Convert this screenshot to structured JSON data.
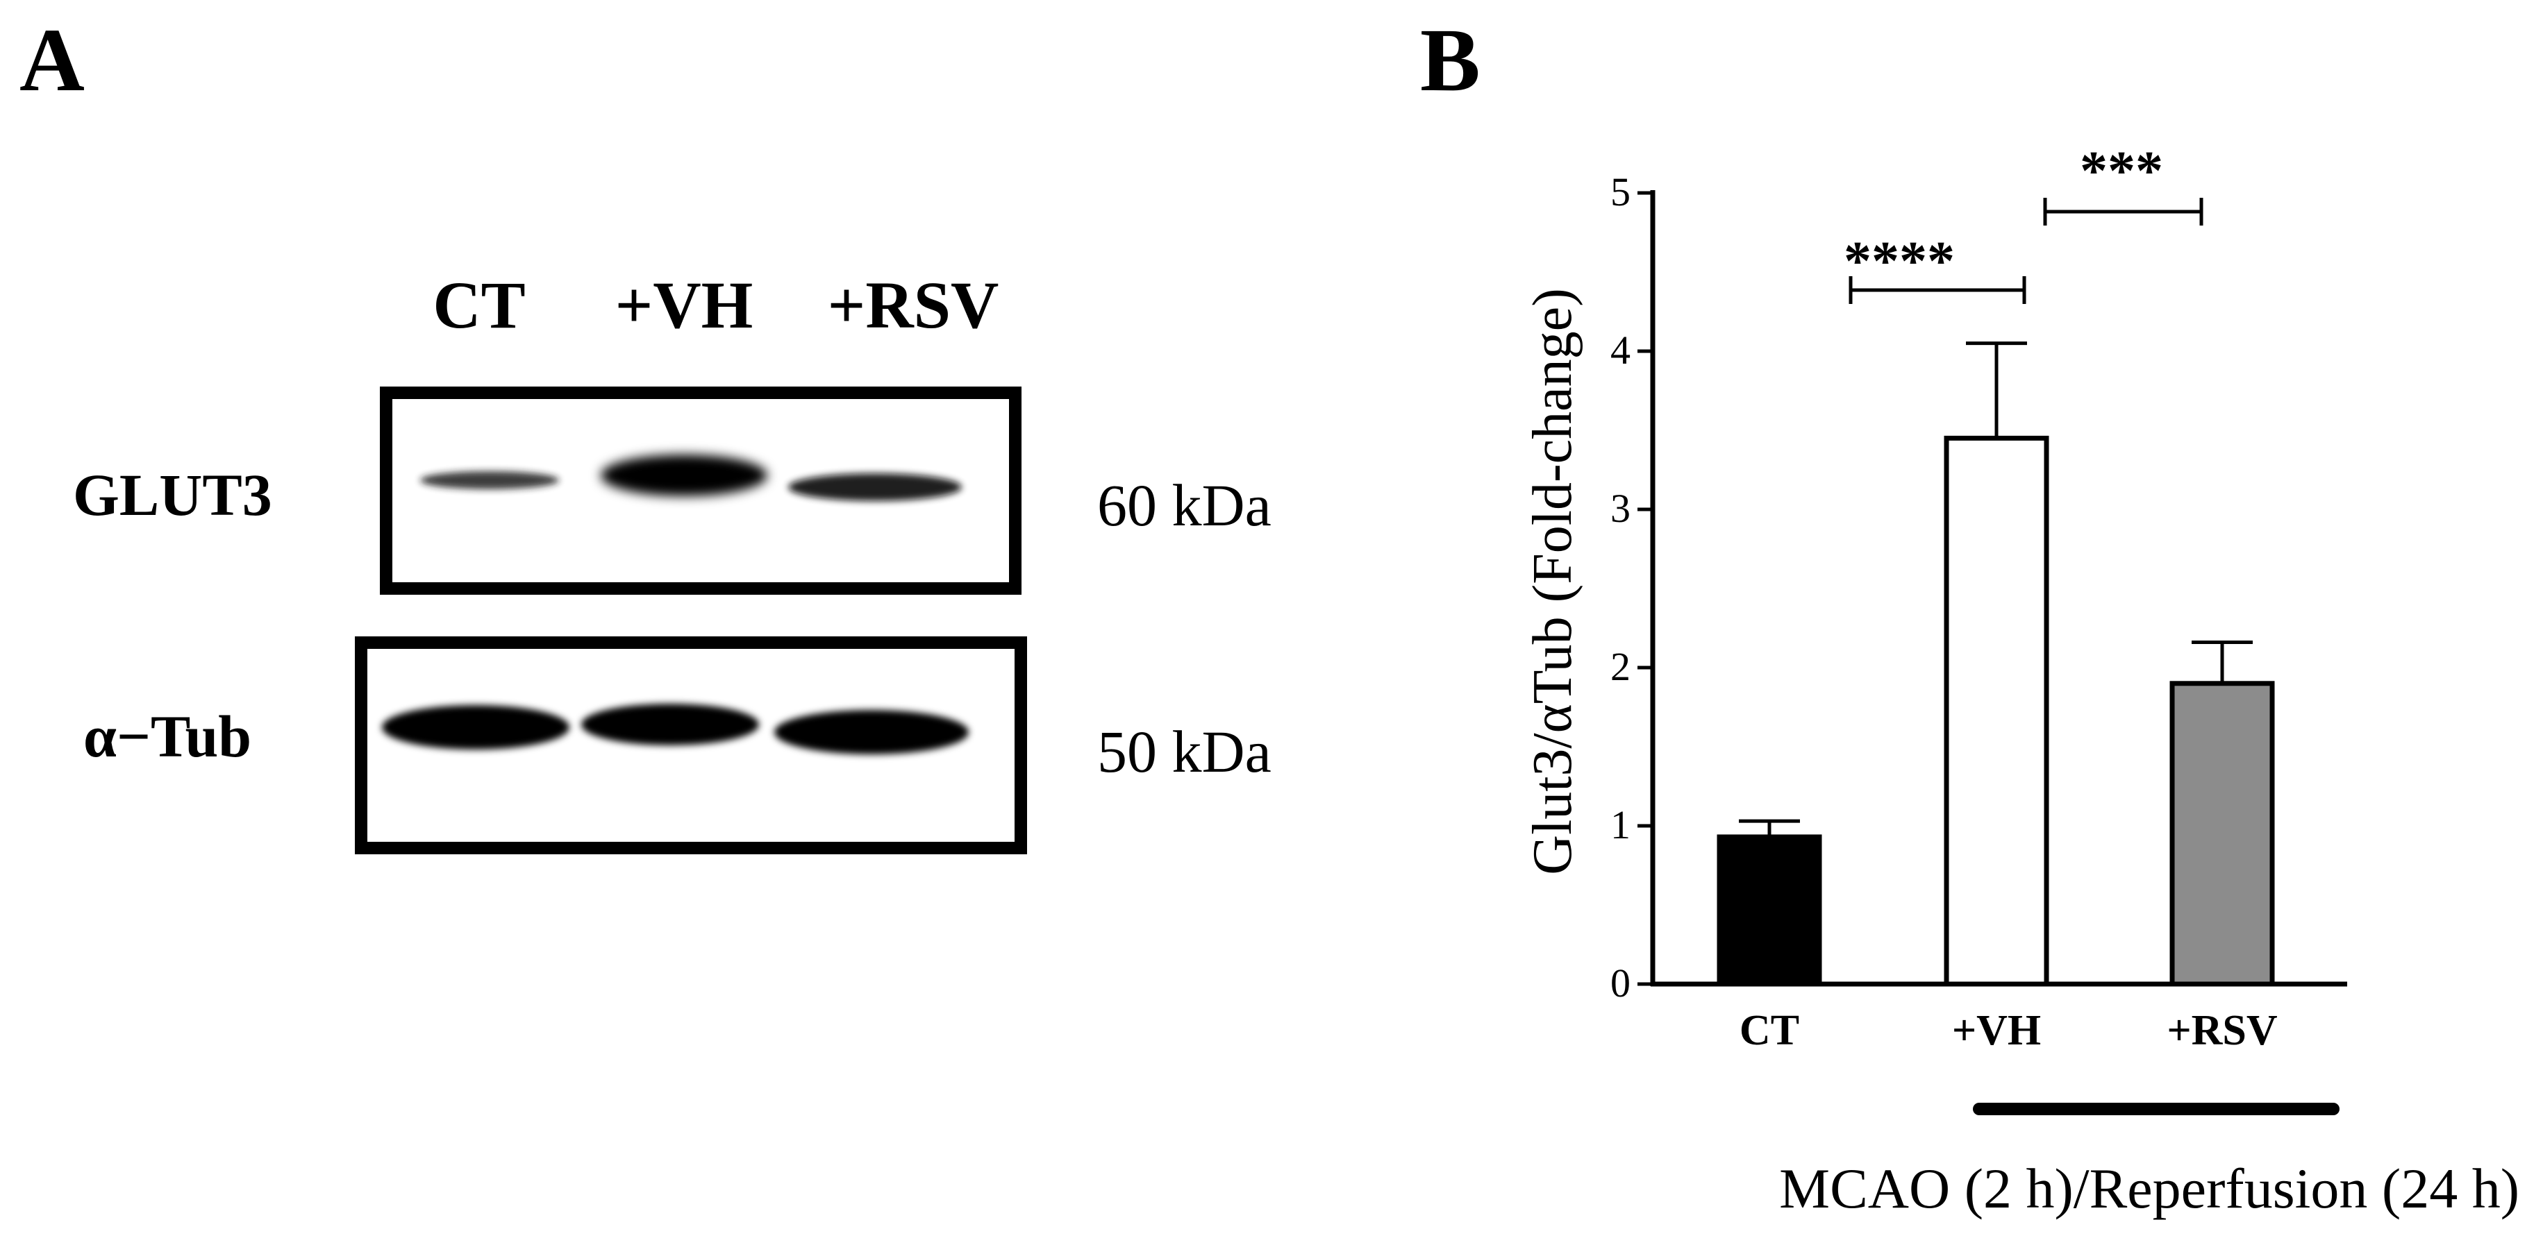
{
  "panels": {
    "a": {
      "letter": "A",
      "lanes": [
        "CT",
        "+VH",
        "+RSV"
      ],
      "blots": [
        {
          "name": "GLUT3",
          "size": "60 kDa",
          "intensity": [
            0.55,
            1.0,
            0.75
          ]
        },
        {
          "name": "α−Tub",
          "size": "50 kDa",
          "intensity": [
            1.0,
            1.0,
            1.0
          ]
        }
      ]
    },
    "b": {
      "letter": "B"
    }
  },
  "chart_data": {
    "type": "bar",
    "categories": [
      "CT",
      "+VH",
      "+RSV"
    ],
    "values": [
      0.93,
      3.45,
      1.9
    ],
    "errors": [
      0.1,
      0.6,
      0.26
    ],
    "colors": [
      "#000000",
      "#ffffff",
      "#8c8c8c"
    ],
    "ylabel": "Glut3/αTub (Fold-change)",
    "xlabel": "",
    "ylim": [
      0,
      5
    ],
    "yticks": [
      0,
      1,
      2,
      3,
      4,
      5
    ],
    "grid": false,
    "significance": [
      {
        "from": "CT",
        "to": "+VH",
        "label": "****"
      },
      {
        "from": "+VH",
        "to": "+RSV",
        "label": "***"
      }
    ],
    "treatment_bar": {
      "spans": [
        "+VH",
        "+RSV"
      ],
      "label": "MCAO (2 h)/Reperfusion (24 h)"
    }
  }
}
